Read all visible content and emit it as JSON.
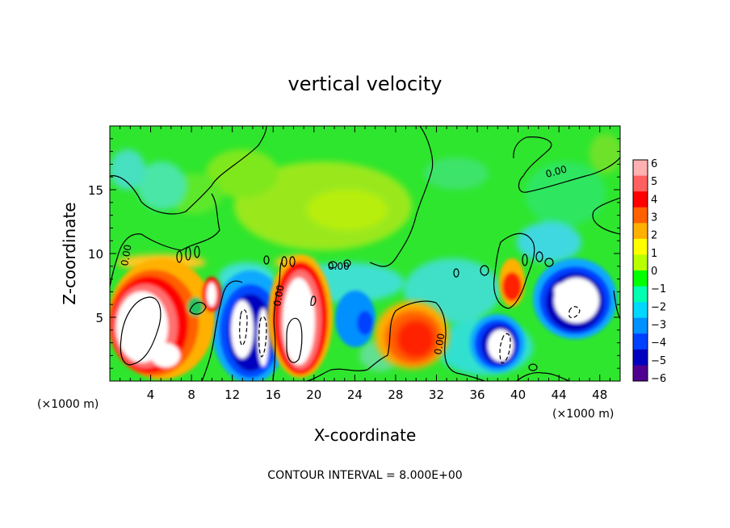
{
  "chart_data": {
    "type": "heatmap",
    "title": "vertical velocity",
    "xlabel": "X-coordinate",
    "ylabel": "Z-coordinate",
    "x_unit_left": "(×1000 m)",
    "x_unit_right": "(×1000 m)",
    "footer": "CONTOUR INTERVAL = 8.000E+00",
    "xlim": [
      0,
      50
    ],
    "ylim": [
      0,
      20
    ],
    "x_ticks": [
      4,
      8,
      12,
      16,
      20,
      24,
      28,
      32,
      36,
      40,
      44,
      48
    ],
    "y_ticks": [
      5,
      10,
      15
    ],
    "colorbar": {
      "ticks": [
        6,
        5,
        4,
        3,
        2,
        1,
        0,
        -1,
        -2,
        -3,
        -4,
        -5,
        -6
      ],
      "colors": [
        "#ffb0b0",
        "#ff6060",
        "#ff0000",
        "#ff6000",
        "#ffb000",
        "#ffff00",
        "#b8ff00",
        "#00ff00",
        "#00ffb0",
        "#00d8ff",
        "#0090ff",
        "#0040ff",
        "#0000c0",
        "#500090"
      ]
    },
    "contour_labels": [
      "0.00",
      "0.00",
      "0.00",
      "0.00",
      "0.00"
    ],
    "features": [
      {
        "kind": "updraft",
        "x_center": 3.5,
        "z_center": 3.5,
        "peak": ">6"
      },
      {
        "kind": "downdraft",
        "x_center": 13.5,
        "z_center": 3.5,
        "peak": "<-6"
      },
      {
        "kind": "updraft",
        "x_center": 18.5,
        "z_center": 5.0,
        "peak": ">6"
      },
      {
        "kind": "updraft",
        "x_center": 29.0,
        "z_center": 3.5,
        "peak": "5"
      },
      {
        "kind": "downdraft",
        "x_center": 38.5,
        "z_center": 3.0,
        "peak": "<-6"
      },
      {
        "kind": "updraft",
        "x_center": 39.5,
        "z_center": 7.0,
        "peak": "5"
      },
      {
        "kind": "downdraft",
        "x_center": 45.5,
        "z_center": 7.0,
        "peak": "<-6"
      }
    ]
  }
}
